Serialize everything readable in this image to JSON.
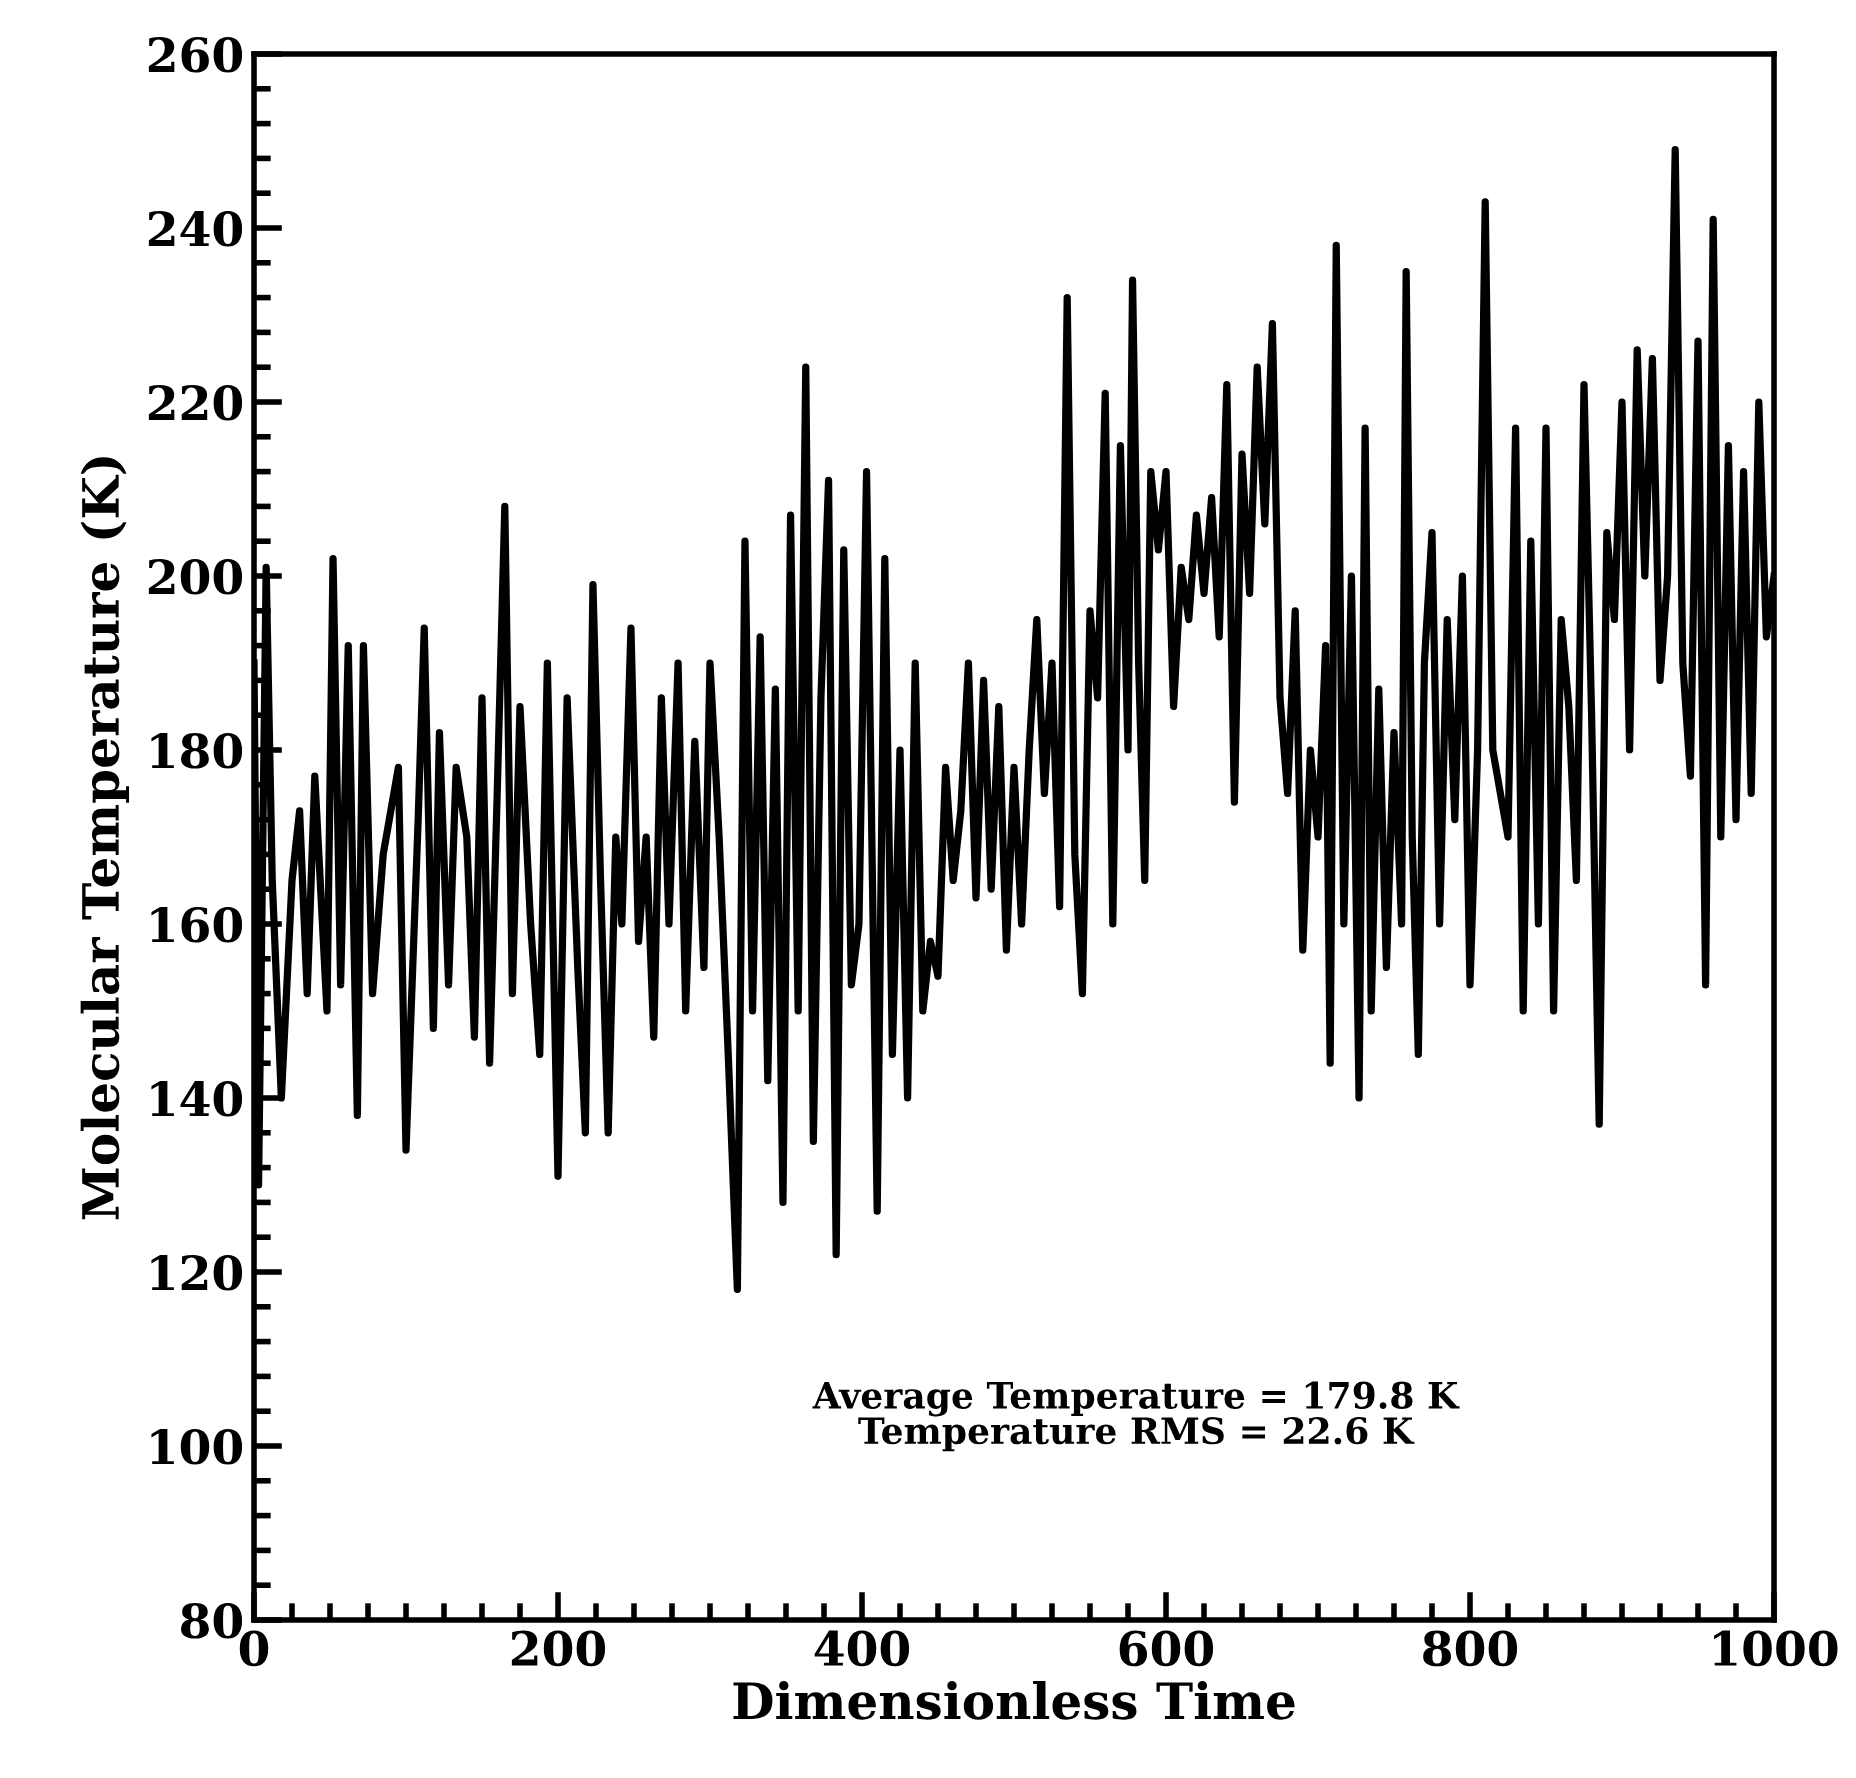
{
  "chart_data": {
    "type": "line",
    "xlabel": "Dimensionless Time",
    "ylabel": "Molecular Temperature (K)",
    "xlim": [
      0,
      1000
    ],
    "xticks": [
      0,
      200,
      400,
      600,
      800,
      1000
    ],
    "ylim": [
      80,
      260
    ],
    "yticks": [
      80,
      100,
      120,
      140,
      160,
      180,
      200,
      220,
      240,
      260
    ],
    "grid": false,
    "legend": false,
    "annotations": [
      "Average Temperature = 179.8 K\nTemperature RMS = 22.6 K"
    ],
    "series": [
      {
        "color": "#000000",
        "x": [
          0,
          3,
          8,
          12,
          18,
          25,
          30,
          35,
          40,
          48,
          52,
          57,
          62,
          68,
          72,
          78,
          85,
          95,
          100,
          108,
          112,
          118,
          122,
          128,
          133,
          140,
          145,
          150,
          155,
          160,
          165,
          170,
          175,
          182,
          188,
          193,
          200,
          206,
          213,
          218,
          223,
          228,
          233,
          238,
          242,
          248,
          253,
          258,
          263,
          268,
          273,
          279,
          284,
          290,
          296,
          300,
          306,
          312,
          318,
          323,
          328,
          333,
          338,
          343,
          348,
          353,
          358,
          363,
          368,
          373,
          378,
          383,
          388,
          393,
          398,
          403,
          410,
          415,
          420,
          425,
          430,
          435,
          440,
          445,
          450,
          455,
          460,
          465,
          470,
          475,
          480,
          485,
          490,
          495,
          500,
          505,
          510,
          515,
          520,
          525,
          530,
          535,
          540,
          545,
          550,
          555,
          560,
          565,
          570,
          575,
          578,
          582,
          586,
          590,
          595,
          600,
          605,
          610,
          615,
          620,
          625,
          630,
          635,
          640,
          645,
          650,
          655,
          660,
          665,
          670,
          675,
          680,
          685,
          690,
          695,
          700,
          705,
          708,
          712,
          717,
          722,
          727,
          731,
          735,
          740,
          745,
          750,
          755,
          758,
          762,
          766,
          770,
          775,
          780,
          785,
          790,
          795,
          800,
          805,
          810,
          815,
          820,
          825,
          830,
          835,
          840,
          845,
          850,
          855,
          860,
          865,
          870,
          875,
          880,
          885,
          890,
          895,
          900,
          905,
          910,
          915,
          920,
          925,
          930,
          935,
          940,
          945,
          950,
          955,
          960,
          965,
          970,
          975,
          980,
          985,
          990,
          995,
          1000
        ],
        "values": [
          190,
          130,
          201,
          165,
          140,
          165,
          173,
          152,
          177,
          150,
          202,
          153,
          192,
          138,
          192,
          152,
          168,
          178,
          134,
          172,
          194,
          148,
          182,
          153,
          178,
          170,
          147,
          186,
          144,
          175,
          208,
          152,
          185,
          160,
          145,
          190,
          131,
          186,
          155,
          136,
          199,
          165,
          136,
          170,
          160,
          194,
          158,
          170,
          147,
          186,
          160,
          190,
          150,
          181,
          155,
          190,
          170,
          145,
          118,
          204,
          150,
          193,
          142,
          187,
          128,
          207,
          150,
          224,
          135,
          186,
          211,
          122,
          203,
          153,
          160,
          212,
          127,
          202,
          145,
          180,
          140,
          190,
          150,
          158,
          154,
          178,
          165,
          173,
          190,
          163,
          188,
          164,
          185,
          157,
          178,
          160,
          180,
          195,
          175,
          190,
          162,
          232,
          168,
          152,
          196,
          186,
          221,
          160,
          215,
          180,
          234,
          190,
          165,
          212,
          203,
          212,
          185,
          201,
          195,
          207,
          198,
          209,
          193,
          222,
          174,
          214,
          198,
          224,
          206,
          229,
          186,
          175,
          196,
          157,
          180,
          170,
          192,
          144,
          238,
          160,
          200,
          140,
          217,
          150,
          187,
          155,
          182,
          160,
          235,
          170,
          145,
          190,
          205,
          160,
          195,
          172,
          200,
          153,
          180,
          243,
          180,
          175,
          170,
          217,
          150,
          204,
          160,
          217,
          150,
          195,
          185,
          165,
          222,
          184,
          137,
          205,
          195,
          220,
          180,
          226,
          200,
          225,
          188,
          200,
          249,
          190,
          177,
          227,
          153,
          241,
          170,
          215,
          172,
          212,
          175,
          220,
          193,
          200
        ]
      }
    ]
  }
}
